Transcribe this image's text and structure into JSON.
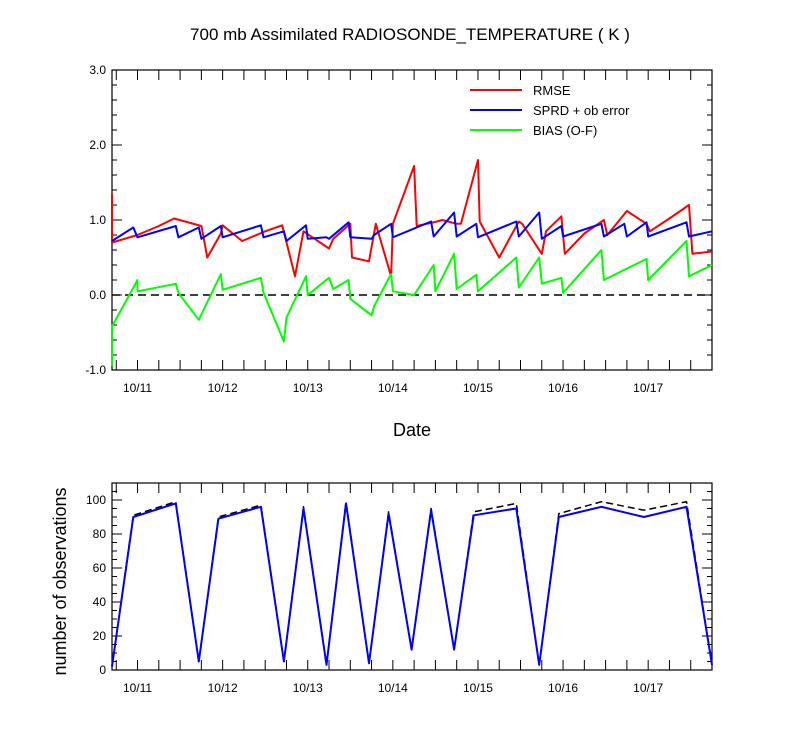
{
  "chart_data": [
    {
      "type": "line",
      "title": "700 mb Assimilated RADIOSONDE_TEMPERATURE ( K )",
      "xlabel": "Date",
      "ylabel": "",
      "ylim": [
        -1.0,
        3.0
      ],
      "yticks": [
        "-1.0",
        "0.0",
        "1.0",
        "2.0",
        "3.0"
      ],
      "xlim": [
        10.7,
        17.75
      ],
      "xticks": [
        {
          "label": "10/11",
          "x": 11.0
        },
        {
          "label": "10/12",
          "x": 12.0
        },
        {
          "label": "10/13",
          "x": 13.0
        },
        {
          "label": "10/14",
          "x": 14.0
        },
        {
          "label": "10/15",
          "x": 15.0
        },
        {
          "label": "10/16",
          "x": 16.0
        },
        {
          "label": "10/17",
          "x": 17.0
        }
      ],
      "reference_line": 0.0,
      "legend_position": "top-right",
      "series": [
        {
          "name": "RMSE",
          "color": "#ff0000",
          "x": [
            10.7,
            10.7,
            11.0,
            11.25,
            11.43,
            11.75,
            11.82,
            11.98,
            12.0,
            12.23,
            12.5,
            12.7,
            12.85,
            12.95,
            13.25,
            13.3,
            13.5,
            13.52,
            13.72,
            13.8,
            13.98,
            14.0,
            14.25,
            14.28,
            14.52,
            14.58,
            14.75,
            14.8,
            15.0,
            15.02,
            15.25,
            15.48,
            15.52,
            15.75,
            15.8,
            15.98,
            16.02,
            16.25,
            16.48,
            16.52,
            16.75,
            16.98,
            17.02,
            17.25,
            17.48,
            17.52,
            17.75
          ],
          "y": [
            1.35,
            0.7,
            0.8,
            0.92,
            1.02,
            0.92,
            0.5,
            0.82,
            0.93,
            0.72,
            0.85,
            0.93,
            0.25,
            0.85,
            0.62,
            0.75,
            0.95,
            0.5,
            0.45,
            0.95,
            0.25,
            0.95,
            1.72,
            0.92,
            0.98,
            1.0,
            0.95,
            0.95,
            1.8,
            0.98,
            0.5,
            0.98,
            0.95,
            0.55,
            0.85,
            1.05,
            0.55,
            0.82,
            1.0,
            0.8,
            1.12,
            0.95,
            0.85,
            1.02,
            1.2,
            0.55,
            0.58
          ]
        },
        {
          "name": "SPRD + ob error",
          "color": "#0000ff",
          "x": [
            10.7,
            10.95,
            11.0,
            11.45,
            11.48,
            11.72,
            11.75,
            11.98,
            12.0,
            12.45,
            12.48,
            12.72,
            12.75,
            12.98,
            13.0,
            13.22,
            13.25,
            13.48,
            13.5,
            13.75,
            13.78,
            13.98,
            14.0,
            14.45,
            14.48,
            14.72,
            14.75,
            14.98,
            15.0,
            15.45,
            15.48,
            15.72,
            15.75,
            15.98,
            16.0,
            16.45,
            16.48,
            16.72,
            16.75,
            16.98,
            17.0,
            17.45,
            17.48,
            17.75
          ],
          "y": [
            0.72,
            0.9,
            0.77,
            0.92,
            0.77,
            0.9,
            0.75,
            0.92,
            0.77,
            0.93,
            0.77,
            0.85,
            0.72,
            0.93,
            0.75,
            0.77,
            0.75,
            0.97,
            0.77,
            0.75,
            0.8,
            0.95,
            0.77,
            0.98,
            0.78,
            1.1,
            0.78,
            0.95,
            0.77,
            0.98,
            0.78,
            1.1,
            0.75,
            0.92,
            0.78,
            0.95,
            0.78,
            0.95,
            0.78,
            0.97,
            0.78,
            0.97,
            0.78,
            0.85
          ]
        },
        {
          "name": "BIAS (O-F)",
          "color": "#00ff00",
          "x": [
            10.7,
            10.7,
            11.0,
            11.0,
            11.45,
            11.48,
            11.72,
            11.98,
            12.0,
            12.45,
            12.48,
            12.72,
            12.75,
            12.98,
            13.0,
            13.25,
            13.3,
            13.48,
            13.5,
            13.75,
            13.78,
            13.98,
            14.0,
            14.25,
            14.48,
            14.5,
            14.72,
            14.75,
            14.98,
            15.0,
            15.45,
            15.48,
            15.72,
            15.75,
            15.98,
            16.0,
            16.45,
            16.48,
            16.98,
            17.0,
            17.45,
            17.48,
            17.75
          ],
          "y": [
            -0.95,
            -0.42,
            0.2,
            0.05,
            0.15,
            0.03,
            -0.33,
            0.28,
            0.07,
            0.23,
            0.03,
            -0.62,
            -0.3,
            0.25,
            0.0,
            0.23,
            0.08,
            0.2,
            -0.05,
            -0.27,
            -0.15,
            0.28,
            0.05,
            0.0,
            0.4,
            0.05,
            0.55,
            0.08,
            0.27,
            0.05,
            0.5,
            0.1,
            0.5,
            0.15,
            0.23,
            0.03,
            0.6,
            0.2,
            0.48,
            0.2,
            0.72,
            0.25,
            0.4
          ]
        }
      ]
    },
    {
      "type": "line",
      "title": "",
      "xlabel": "",
      "ylabel": "number of observations",
      "ylim": [
        0,
        110
      ],
      "yticks": [
        "0",
        "20",
        "40",
        "60",
        "80",
        "100"
      ],
      "xlim": [
        10.7,
        17.75
      ],
      "xticks": [
        {
          "label": "10/11",
          "x": 11.0
        },
        {
          "label": "10/12",
          "x": 12.0
        },
        {
          "label": "10/13",
          "x": 13.0
        },
        {
          "label": "10/14",
          "x": 14.0
        },
        {
          "label": "10/15",
          "x": 15.0
        },
        {
          "label": "10/16",
          "x": 16.0
        },
        {
          "label": "10/17",
          "x": 17.0
        }
      ],
      "series": [
        {
          "color": "#000000",
          "dashed": true,
          "x": [
            10.7,
            10.95,
            11.45,
            11.72,
            11.95,
            12.45,
            12.72,
            12.95,
            13.22,
            13.45,
            13.72,
            13.95,
            14.22,
            14.45,
            14.72,
            14.95,
            15.45,
            15.72,
            15.95,
            16.45,
            16.95,
            17.45,
            17.75
          ],
          "y": [
            2,
            91,
            99,
            5,
            90,
            97,
            5,
            96,
            3,
            99,
            4,
            93,
            12,
            95,
            12,
            93,
            98,
            3,
            92,
            99,
            94,
            99,
            3
          ]
        },
        {
          "color": "#0000ff",
          "dashed": false,
          "x": [
            10.7,
            10.95,
            11.45,
            11.72,
            11.95,
            12.45,
            12.72,
            12.95,
            13.22,
            13.45,
            13.72,
            13.95,
            14.22,
            14.45,
            14.72,
            14.95,
            15.45,
            15.72,
            15.95,
            16.45,
            16.95,
            17.45,
            17.75
          ],
          "y": [
            2,
            90,
            98,
            5,
            89,
            96,
            5,
            95,
            3,
            98,
            4,
            92,
            12,
            94,
            12,
            91,
            95,
            3,
            90,
            96,
            90,
            96,
            3
          ]
        }
      ]
    }
  ]
}
